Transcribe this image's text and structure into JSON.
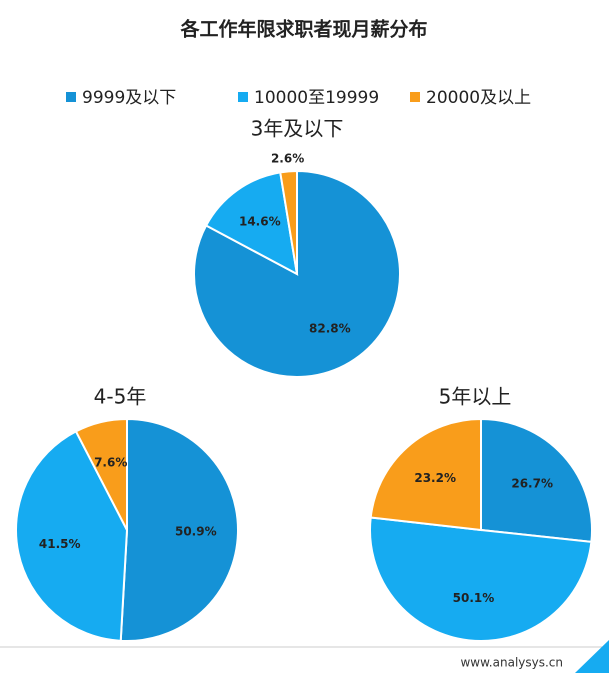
{
  "title": "各工作年限求职者现月薪分布",
  "source": "www.analysys.cn",
  "chart_data": [
    {
      "type": "pie",
      "title": "3年及以下",
      "categories": [
        "9999及以下",
        "10000至19999",
        "20000及以上"
      ],
      "values": [
        82.8,
        14.6,
        2.6
      ],
      "value_labels": [
        "82.8%",
        "14.6%",
        "2.6%"
      ],
      "colors": [
        "#1592d6",
        "#16abf1",
        "#f99d1b"
      ]
    },
    {
      "type": "pie",
      "title": "4-5年",
      "categories": [
        "9999及以下",
        "10000至19999",
        "20000及以上"
      ],
      "values": [
        50.9,
        41.5,
        7.6
      ],
      "value_labels": [
        "50.9%",
        "41.5%",
        "7.6%"
      ],
      "colors": [
        "#1592d6",
        "#16abf1",
        "#f99d1b"
      ]
    },
    {
      "type": "pie",
      "title": "5年以上",
      "categories": [
        "9999及以下",
        "10000至19999",
        "20000及以上"
      ],
      "values": [
        26.7,
        50.1,
        23.2
      ],
      "value_labels": [
        "26.7%",
        "50.1%",
        "23.2%"
      ],
      "colors": [
        "#1592d6",
        "#16abf1",
        "#f99d1b"
      ]
    }
  ]
}
